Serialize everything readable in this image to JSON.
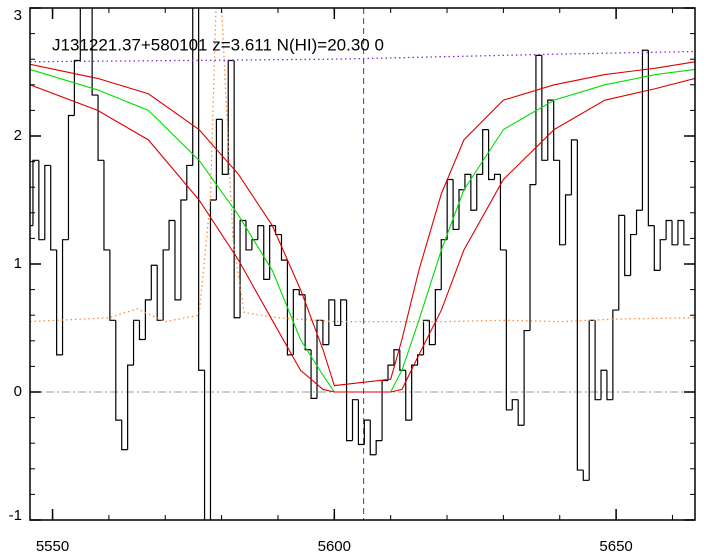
{
  "chart_data": {
    "type": "line",
    "title": "J131221.37+580101 z=3.611 N(HI)=20.30 0",
    "xlim": [
      5546,
      5664
    ],
    "ylim": [
      -1,
      3
    ],
    "xticks": [
      5550,
      5600,
      5650
    ],
    "yticks": [
      -1,
      0,
      1,
      2,
      3
    ],
    "xminorticks": [
      5550,
      5560,
      5570,
      5580,
      5590,
      5600,
      5610,
      5620,
      5630,
      5640,
      5650,
      5660
    ],
    "yminorticks": [
      -1,
      -0.8,
      -0.6,
      -0.4,
      -0.2,
      0,
      0.2,
      0.4,
      0.6,
      0.8,
      1,
      1.2,
      1.4,
      1.6,
      1.8,
      2,
      2.2,
      2.4,
      2.6,
      2.8,
      3
    ],
    "reference_lines": {
      "y": 0,
      "x": 5605.2
    },
    "series": [
      {
        "style": "step",
        "color": "#000000",
        "x": [
          5546,
          5547.05,
          5548.1,
          5549.15,
          5550.2,
          5551.25,
          5552.3,
          5553.35,
          5554.4,
          5555.45,
          5556.5,
          5557.55,
          5558.6,
          5559.65,
          5560.7,
          5561.75,
          5562.8,
          5563.85,
          5564.9,
          5565.95,
          5567,
          5568.05,
          5569.1,
          5570.15,
          5571.2,
          5572.25,
          5573.3,
          5574.35,
          5575.4,
          5576.45,
          5577.5,
          5578.55,
          5579.6,
          5580.65,
          5581.7,
          5582.75,
          5583.8,
          5584.85,
          5585.9,
          5586.95,
          5588,
          5589.05,
          5590.1,
          5591.15,
          5592.2,
          5593.25,
          5594.3,
          5595.35,
          5596.4,
          5597.45,
          5598.5,
          5599.55,
          5600.6,
          5601.65,
          5602.7,
          5603.75,
          5604.8,
          5605.85,
          5606.9,
          5607.95,
          5609,
          5610.05,
          5611.1,
          5612.15,
          5613.2,
          5614.25,
          5615.3,
          5616.35,
          5617.4,
          5618.45,
          5619.5,
          5620.55,
          5621.6,
          5622.65,
          5623.7,
          5624.75,
          5625.8,
          5626.85,
          5627.9,
          5628.95,
          5630,
          5631.05,
          5632.1,
          5633.15,
          5634.2,
          5635.25,
          5636.3,
          5637.35,
          5638.4,
          5639.45,
          5640.5,
          5641.55,
          5642.6,
          5643.65,
          5644.7,
          5645.75,
          5646.8,
          5647.85,
          5648.9,
          5649.95,
          5651,
          5652.05,
          5653.1,
          5654.15,
          5655.2,
          5656.25,
          5657.3,
          5658.35,
          5659.4,
          5660.45,
          5661.5,
          5662.55
        ],
        "values": [
          1.3,
          1.81,
          1.19,
          1.77,
          1.11,
          0.29,
          1.19,
          2.16,
          2.59,
          3.3,
          3.3,
          2.32,
          1.81,
          1.11,
          0.56,
          -0.22,
          -0.45,
          0.21,
          0.56,
          0.41,
          0.72,
          0.99,
          0.56,
          1.11,
          1.34,
          0.72,
          1.5,
          1.77,
          3.3,
          0.17,
          -1.1,
          1.5,
          2.13,
          1.7,
          2.59,
          0.58,
          1.34,
          1.11,
          1.19,
          1.3,
          0.88,
          1.3,
          1.23,
          1.03,
          0.29,
          0.8,
          0.76,
          0.33,
          -0.05,
          0.56,
          0.37,
          0.72,
          0.52,
          0.72,
          -0.38,
          -0.06,
          -0.41,
          -0.22,
          -0.49,
          -0.38,
          0.09,
          0.21,
          0.33,
          0.17,
          -0.22,
          0.21,
          0.29,
          0.56,
          0.37,
          0.8,
          1.19,
          1.66,
          1.27,
          1.58,
          1.7,
          1.42,
          1.7,
          2.05,
          1.66,
          1.7,
          1.11,
          -0.14,
          -0.06,
          -0.26,
          0.48,
          1.62,
          2.63,
          1.81,
          2.28,
          1.81,
          1.15,
          1.54,
          1.97,
          -0.61,
          -0.69,
          0.56,
          -0.06,
          0.17,
          -0.06,
          0.64,
          1.38,
          0.91,
          1.23,
          1.42,
          2.67,
          1.3,
          0.95,
          1.19,
          1.34,
          1.15,
          1.34,
          1.15
        ]
      },
      {
        "style": "dotted",
        "color": "#ff8c3c",
        "x": [
          5546,
          5560,
          5565,
          5570,
          5576,
          5578,
          5579,
          5580,
          5582,
          5584,
          5590,
          5600,
          5610,
          5620,
          5630,
          5640,
          5650,
          5664
        ],
        "values": [
          0.55,
          0.58,
          0.65,
          0.55,
          0.6,
          1.5,
          3.0,
          3.0,
          1.2,
          0.62,
          0.58,
          0.55,
          0.55,
          0.55,
          0.56,
          0.55,
          0.57,
          0.58
        ]
      },
      {
        "style": "dotted",
        "color": "#8a2be2",
        "x": [
          5546,
          5600,
          5640,
          5664
        ],
        "values": [
          2.58,
          2.6,
          2.64,
          2.66
        ]
      },
      {
        "style": "solid",
        "color": "#00dd00",
        "x": [
          5546,
          5558,
          5567,
          5576,
          5583,
          5589,
          5594,
          5598,
          5600,
          5610,
          5612,
          5615,
          5619,
          5623,
          5630,
          5639,
          5648,
          5657,
          5664
        ],
        "values": [
          2.52,
          2.36,
          2.2,
          1.81,
          1.38,
          0.95,
          0.41,
          0.13,
          0,
          0,
          0.17,
          0.56,
          1.11,
          1.58,
          2.05,
          2.28,
          2.4,
          2.48,
          2.52
        ]
      },
      {
        "style": "solid",
        "color": "#dd0000",
        "x": [
          5546,
          5558,
          5567,
          5576,
          5583,
          5589,
          5594,
          5598,
          5600,
          5610,
          5612,
          5615,
          5619,
          5623,
          5630,
          5639,
          5648,
          5657,
          5664
        ],
        "values": [
          2.56,
          2.45,
          2.33,
          2.05,
          1.7,
          1.3,
          0.8,
          0.33,
          0.05,
          0.1,
          0.41,
          0.95,
          1.55,
          1.97,
          2.28,
          2.4,
          2.48,
          2.53,
          2.58
        ]
      },
      {
        "style": "solid",
        "color": "#dd0000",
        "x": [
          5546,
          5558,
          5567,
          5576,
          5583,
          5589,
          5594,
          5598,
          5600,
          5610,
          5612,
          5615,
          5619,
          5623,
          5630,
          5639,
          5648,
          5657,
          5664
        ],
        "values": [
          2.4,
          2.2,
          1.97,
          1.5,
          1.03,
          0.56,
          0.17,
          0.02,
          0,
          0,
          0.02,
          0.29,
          0.64,
          1.11,
          1.66,
          2.05,
          2.28,
          2.37,
          2.45
        ]
      }
    ]
  }
}
